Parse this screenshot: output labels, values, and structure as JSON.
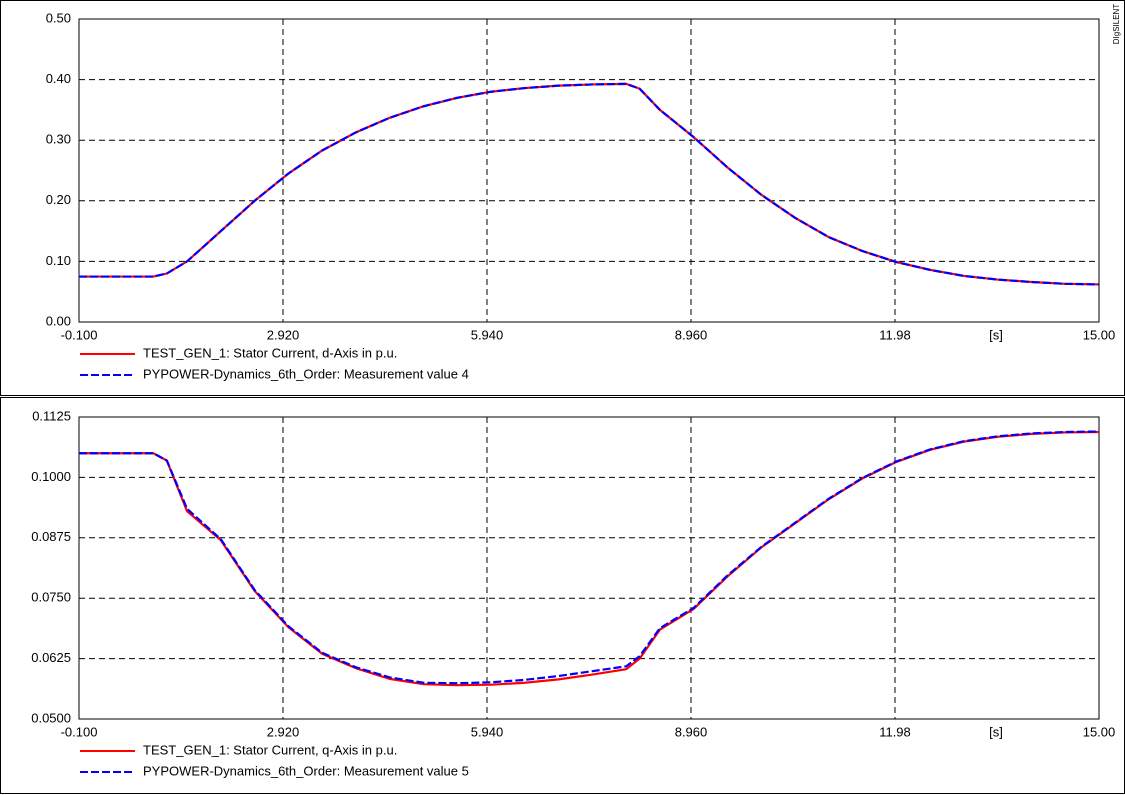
{
  "watermark": "DIgSILENT",
  "chart_data": [
    {
      "type": "line",
      "xlabel": "[s]",
      "x": [
        -0.1,
        0.5,
        1.0,
        1.2,
        1.5,
        2.0,
        2.5,
        3.0,
        3.5,
        4.0,
        4.5,
        5.0,
        5.5,
        6.0,
        6.5,
        7.0,
        7.5,
        8.0,
        8.2,
        8.5,
        9.0,
        9.5,
        10.0,
        10.5,
        11.0,
        11.5,
        12.0,
        12.5,
        13.0,
        13.5,
        14.0,
        14.5,
        15.0
      ],
      "series": [
        {
          "name": "TEST_GEN_1: Stator Current, d-Axis in p.u.",
          "color": "#ff0000",
          "dash": false,
          "values": [
            0.075,
            0.075,
            0.075,
            0.08,
            0.1,
            0.15,
            0.2,
            0.245,
            0.283,
            0.313,
            0.337,
            0.356,
            0.37,
            0.38,
            0.386,
            0.39,
            0.392,
            0.393,
            0.385,
            0.35,
            0.305,
            0.255,
            0.21,
            0.172,
            0.14,
            0.117,
            0.099,
            0.086,
            0.076,
            0.07,
            0.066,
            0.063,
            0.062
          ]
        },
        {
          "name": "PYPOWER-Dynamics_6th_Order: Measurement value 4",
          "color": "#0000ff",
          "dash": true,
          "values": [
            0.075,
            0.075,
            0.075,
            0.08,
            0.1,
            0.15,
            0.2,
            0.245,
            0.283,
            0.313,
            0.337,
            0.356,
            0.37,
            0.38,
            0.386,
            0.39,
            0.392,
            0.393,
            0.385,
            0.35,
            0.305,
            0.255,
            0.21,
            0.172,
            0.14,
            0.117,
            0.099,
            0.086,
            0.076,
            0.07,
            0.066,
            0.063,
            0.062
          ]
        }
      ],
      "xlim": [
        -0.1,
        15
      ],
      "xticks": [
        {
          "value": -0.1,
          "label": "-0.100"
        },
        {
          "value": 2.92,
          "label": "2.920"
        },
        {
          "value": 5.94,
          "label": "5.940"
        },
        {
          "value": 8.96,
          "label": "8.960"
        },
        11.98,
        {
          "value": 15,
          "label": "15.00"
        }
      ],
      "ylim": [
        0,
        0.5
      ],
      "yticks": [
        {
          "value": 0,
          "label": "0.00"
        },
        {
          "value": 0.1,
          "label": "0.10"
        },
        {
          "value": 0.2,
          "label": "0.20"
        },
        {
          "value": 0.3,
          "label": "0.30"
        },
        {
          "value": 0.4,
          "label": "0.40"
        },
        {
          "value": 0.5,
          "label": "0.50"
        }
      ],
      "grid": true
    },
    {
      "type": "line",
      "xlabel": "[s]",
      "x": [
        -0.1,
        0.5,
        1.0,
        1.2,
        1.5,
        2.0,
        2.5,
        3.0,
        3.5,
        4.0,
        4.5,
        5.0,
        5.5,
        6.0,
        6.5,
        7.0,
        7.5,
        8.0,
        8.2,
        8.5,
        9.0,
        9.5,
        10.0,
        10.5,
        11.0,
        11.5,
        12.0,
        12.5,
        13.0,
        13.5,
        14.0,
        14.5,
        15.0
      ],
      "series": [
        {
          "name": "TEST_GEN_1: Stator Current, q-Axis in p.u.",
          "color": "#ff0000",
          "dash": false,
          "values": [
            0.105,
            0.105,
            0.105,
            0.1035,
            0.093,
            0.087,
            0.0765,
            0.069,
            0.0635,
            0.0605,
            0.0583,
            0.0572,
            0.057,
            0.0571,
            0.0575,
            0.0582,
            0.0592,
            0.0603,
            0.0625,
            0.0685,
            0.0728,
            0.0795,
            0.0855,
            0.0905,
            0.0955,
            0.0998,
            0.1032,
            0.1057,
            0.1074,
            0.1084,
            0.109,
            0.1093,
            0.1094
          ]
        },
        {
          "name": "PYPOWER-Dynamics_6th_Order: Measurement value 5",
          "color": "#0000ff",
          "dash": true,
          "values": [
            0.105,
            0.105,
            0.105,
            0.1035,
            0.0935,
            0.0872,
            0.0767,
            0.0692,
            0.0637,
            0.0607,
            0.0586,
            0.0575,
            0.0574,
            0.0576,
            0.0581,
            0.0589,
            0.0599,
            0.0609,
            0.063,
            0.0688,
            0.073,
            0.0797,
            0.0856,
            0.0906,
            0.0956,
            0.0999,
            0.1033,
            0.1058,
            0.1075,
            0.1085,
            0.1091,
            0.1094,
            0.1095
          ]
        }
      ],
      "xlim": [
        -0.1,
        15
      ],
      "xticks": [
        {
          "value": -0.1,
          "label": "-0.100"
        },
        {
          "value": 2.92,
          "label": "2.920"
        },
        {
          "value": 5.94,
          "label": "5.940"
        },
        {
          "value": 8.96,
          "label": "8.960"
        },
        11.98,
        {
          "value": 15,
          "label": "15.00"
        }
      ],
      "ylim": [
        0.05,
        0.1125
      ],
      "yticks": [
        {
          "value": 0.05,
          "label": "0.0500"
        },
        0.0625,
        {
          "value": 0.075,
          "label": "0.0750"
        },
        0.0875,
        {
          "value": 0.1,
          "label": "0.1000"
        },
        0.1125
      ],
      "grid": true
    }
  ]
}
